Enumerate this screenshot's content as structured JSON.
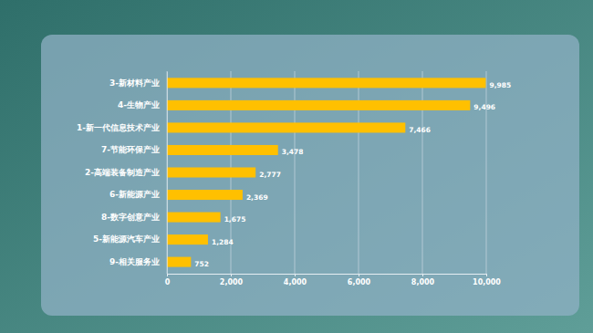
{
  "chart_data": {
    "type": "bar",
    "orientation": "horizontal",
    "categories": [
      "3-新材料产业",
      "4-生物产业",
      "1-新一代信息技术产业",
      "7-节能环保产业",
      "2-高端装备制造产业",
      "6-新能源产业",
      "8-数字创意产业",
      "5-新能源汽车产业",
      "9-相关服务业"
    ],
    "values": [
      9985,
      9496,
      7466,
      3478,
      2777,
      2369,
      1675,
      1284,
      752
    ],
    "value_labels": [
      "9,985",
      "9,496",
      "7,466",
      "3,478",
      "2,777",
      "2,369",
      "1,675",
      "1,284",
      "752"
    ],
    "color": "#ffc000",
    "xlim": [
      0,
      10000
    ],
    "xticks": [
      0,
      {
        "value": 2000,
        "label": "2,000"
      },
      {
        "value": 4000,
        "label": "4,000"
      },
      {
        "value": 6000,
        "label": "6,000"
      },
      {
        "value": 8000,
        "label": "8,000"
      },
      {
        "value": 10000,
        "label": "10,000"
      }
    ],
    "grid": true,
    "data_labels": true
  }
}
